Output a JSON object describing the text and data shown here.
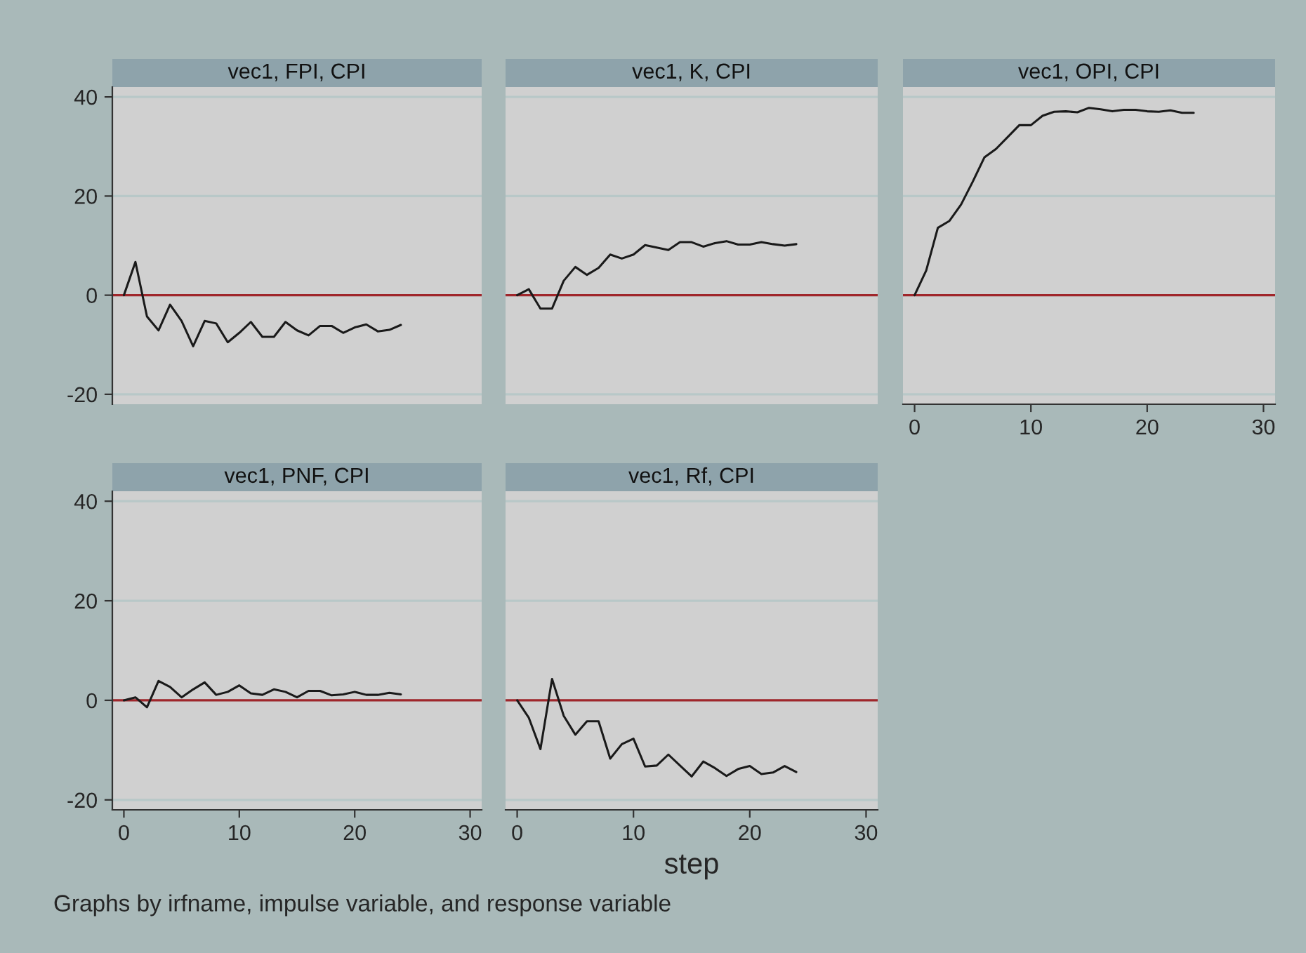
{
  "chart_data": [
    {
      "type": "line",
      "title": "vec1, FPI, CPI",
      "x": [
        0,
        1,
        2,
        3,
        4,
        5,
        6,
        7,
        8,
        9,
        10,
        11,
        12,
        13,
        14,
        15,
        16,
        17,
        18,
        19,
        20,
        21,
        22,
        23,
        24
      ],
      "series": [
        {
          "color": "#1a1a1a",
          "values": [
            0,
            6.7,
            -4.3,
            -7.1,
            -1.9,
            -5.2,
            -10.3,
            -5.2,
            -5.7,
            -9.5,
            -7.6,
            -5.4,
            -8.4,
            -8.4,
            -5.4,
            -7.1,
            -8.1,
            -6.2,
            -6.2,
            -7.6,
            -6.5,
            -5.9,
            -7.3,
            -7.0,
            -6.0
          ]
        }
      ],
      "xlim": [
        -1,
        31
      ],
      "xticks": [
        0,
        10,
        20,
        30
      ],
      "ylim": [
        -22,
        42
      ],
      "yticks": [
        -20,
        0,
        20,
        40
      ],
      "grid": "y",
      "ref_lines": [
        {
          "axis": "y",
          "value": 0,
          "color": "#a0262b"
        }
      ],
      "tick_labels": "y"
    },
    {
      "type": "line",
      "title": "vec1, K, CPI",
      "x": [
        0,
        1,
        2,
        3,
        4,
        5,
        6,
        7,
        8,
        9,
        10,
        11,
        12,
        13,
        14,
        15,
        16,
        17,
        18,
        19,
        20,
        21,
        22,
        23,
        24
      ],
      "series": [
        {
          "color": "#1a1a1a",
          "values": [
            0,
            1.2,
            -2.7,
            -2.7,
            2.9,
            5.7,
            4.1,
            5.5,
            8.2,
            7.4,
            8.2,
            10.1,
            9.6,
            9.1,
            10.7,
            10.7,
            9.8,
            10.5,
            10.9,
            10.2,
            10.2,
            10.7,
            10.3,
            10.0,
            10.3
          ]
        }
      ],
      "xlim": [
        -1,
        31
      ],
      "xticks": [
        0,
        10,
        20,
        30
      ],
      "ylim": [
        -22,
        42
      ],
      "yticks": [
        -20,
        0,
        20,
        40
      ],
      "grid": "y",
      "ref_lines": [
        {
          "axis": "y",
          "value": 0,
          "color": "#a0262b"
        }
      ],
      "tick_labels": false
    },
    {
      "type": "line",
      "title": "vec1, OPI, CPI",
      "x": [
        0,
        1,
        2,
        3,
        4,
        5,
        6,
        7,
        8,
        9,
        10,
        11,
        12,
        13,
        14,
        15,
        16,
        17,
        18,
        19,
        20,
        21,
        22,
        23,
        24
      ],
      "series": [
        {
          "color": "#1a1a1a",
          "values": [
            0,
            5.0,
            13.6,
            15.0,
            18.3,
            22.9,
            27.8,
            29.5,
            31.9,
            34.3,
            34.3,
            36.2,
            37.0,
            37.1,
            36.9,
            37.8,
            37.5,
            37.1,
            37.4,
            37.4,
            37.1,
            37.0,
            37.3,
            36.8,
            36.8
          ]
        }
      ],
      "xlim": [
        -1,
        31
      ],
      "xticks": [
        0,
        10,
        20,
        30
      ],
      "ylim": [
        -22,
        42
      ],
      "yticks": [
        -20,
        0,
        20,
        40
      ],
      "grid": "y",
      "ref_lines": [
        {
          "axis": "y",
          "value": 0,
          "color": "#a0262b"
        }
      ],
      "tick_labels": "x"
    },
    {
      "type": "line",
      "title": "vec1, PNF, CPI",
      "x": [
        0,
        1,
        2,
        3,
        4,
        5,
        6,
        7,
        8,
        9,
        10,
        11,
        12,
        13,
        14,
        15,
        16,
        17,
        18,
        19,
        20,
        21,
        22,
        23,
        24
      ],
      "series": [
        {
          "color": "#1a1a1a",
          "values": [
            0,
            0.6,
            -1.4,
            3.9,
            2.7,
            0.6,
            2.2,
            3.6,
            1.1,
            1.7,
            3.0,
            1.4,
            1.1,
            2.2,
            1.7,
            0.6,
            1.9,
            1.9,
            1.0,
            1.2,
            1.7,
            1.1,
            1.1,
            1.5,
            1.2
          ]
        }
      ],
      "xlim": [
        -1,
        31
      ],
      "xticks": [
        0,
        10,
        20,
        30
      ],
      "ylim": [
        -22,
        42
      ],
      "yticks": [
        -20,
        0,
        20,
        40
      ],
      "grid": "y",
      "ref_lines": [
        {
          "axis": "y",
          "value": 0,
          "color": "#a0262b"
        }
      ]
    },
    {
      "type": "line",
      "title": "vec1, Rf, CPI",
      "xlabel": "step",
      "annotations": [
        "Graphs by irfname, impulse variable, and response variable"
      ],
      "x": [
        0,
        1,
        2,
        3,
        4,
        5,
        6,
        7,
        8,
        9,
        10,
        11,
        12,
        13,
        14,
        15,
        16,
        17,
        18,
        19,
        20,
        21,
        22,
        23,
        24
      ],
      "series": [
        {
          "color": "#1a1a1a",
          "values": [
            0,
            -3.5,
            -9.8,
            4.3,
            -3.1,
            -6.9,
            -4.2,
            -4.2,
            -11.7,
            -8.8,
            -7.7,
            -13.3,
            -13.1,
            -10.9,
            -13.1,
            -15.3,
            -12.3,
            -13.6,
            -15.2,
            -13.8,
            -13.2,
            -14.8,
            -14.5,
            -13.2,
            -14.4
          ]
        }
      ],
      "xlim": [
        -1,
        31
      ],
      "xticks": [
        0,
        10,
        20,
        30
      ],
      "ylim": [
        -22,
        42
      ],
      "yticks": [
        -20,
        0,
        20,
        40
      ],
      "grid": "y",
      "ref_lines": [
        {
          "axis": "y",
          "value": 0,
          "color": "#a0262b"
        }
      ],
      "tick_labels": "x"
    }
  ]
}
